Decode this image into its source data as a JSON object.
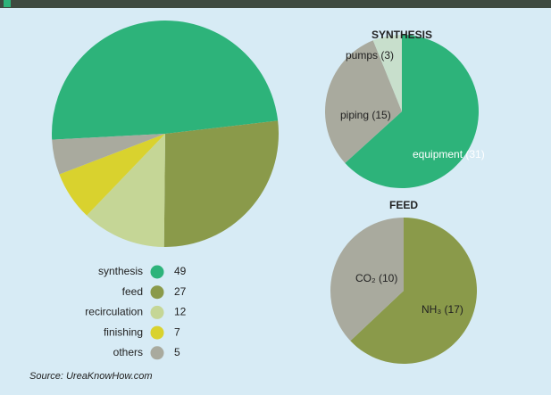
{
  "chart_data": [
    {
      "type": "pie",
      "categories": [
        "synthesis",
        "feed",
        "recirculation",
        "finishing",
        "others"
      ],
      "values": [
        49,
        27,
        12,
        7,
        5
      ],
      "colors": [
        "#2db37a",
        "#8a9a4a",
        "#c5d696",
        "#d9d22e",
        "#a9aa9e"
      ],
      "legend": true
    },
    {
      "type": "pie",
      "title": "SYNTHESIS",
      "categories": [
        "equipment",
        "piping",
        "pumps"
      ],
      "values": [
        31,
        15,
        3
      ],
      "value_labels": [
        "equipment (31)",
        "piping (15)",
        "pumps (3)"
      ],
      "colors": [
        "#2db37a",
        "#a9aa9e",
        "#c8dfcc"
      ]
    },
    {
      "type": "pie",
      "title": "FEED",
      "categories": [
        "NH₃",
        "CO₂"
      ],
      "values": [
        17,
        10
      ],
      "value_labels": [
        "NH₃ (17)",
        "CO₂ (10)"
      ],
      "colors": [
        "#8a9a4a",
        "#a9aa9e"
      ]
    }
  ],
  "source": "Source: UreaKnowHow.com"
}
